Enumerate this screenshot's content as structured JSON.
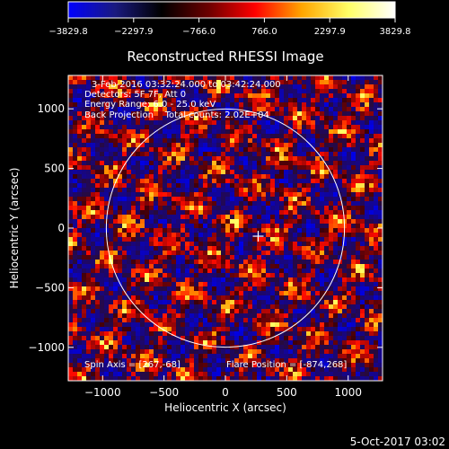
{
  "chart_data": {
    "type": "heatmap",
    "title": "Reconstructed RHESSI Image",
    "xlabel": "Heliocentric X (arcsec)",
    "ylabel": "Heliocentric Y (arcsec)",
    "xlim": [
      -1280,
      1280
    ],
    "ylim": [
      -1280,
      1280
    ],
    "xticks": [
      -1000,
      -500,
      0,
      500,
      1000
    ],
    "yticks": [
      -1000,
      -500,
      0,
      500,
      1000
    ],
    "colorbar": {
      "min": -3829.8,
      "max": 3829.8,
      "ticks": [
        -3829.8,
        -2297.9,
        -766.0,
        766.0,
        2297.9,
        3829.8
      ],
      "tick_labels": [
        "−3829.8",
        "−2297.9",
        "−766.0",
        "766.0",
        "2297.9",
        "3829.8"
      ]
    },
    "annotations": [
      "3-Feb-2016 03:32:24.000 to 03:42:24.000",
      "Detectors: 5F 7F, Att 0",
      "Energy Range: 6.0 - 25.0 keV",
      "Back Projection    Total counts: 2.02E+04"
    ],
    "spin_axis_label": "Spin Axis = [267,-68]",
    "flare_position_label": "Flare Position = [-874,268]",
    "spin_axis": [
      267,
      -68
    ],
    "solar_limb_radius": 970,
    "grid": false
  },
  "footer": {
    "timestamp": "5-Oct-2017 03:02"
  },
  "colors": {
    "background": "#000000",
    "foreground": "#ffffff",
    "colorbar_stops": [
      "#0000ff",
      "#1a1a80",
      "#000000",
      "#6b0000",
      "#ff0000",
      "#ffa500",
      "#ffff66",
      "#ffffff"
    ]
  }
}
